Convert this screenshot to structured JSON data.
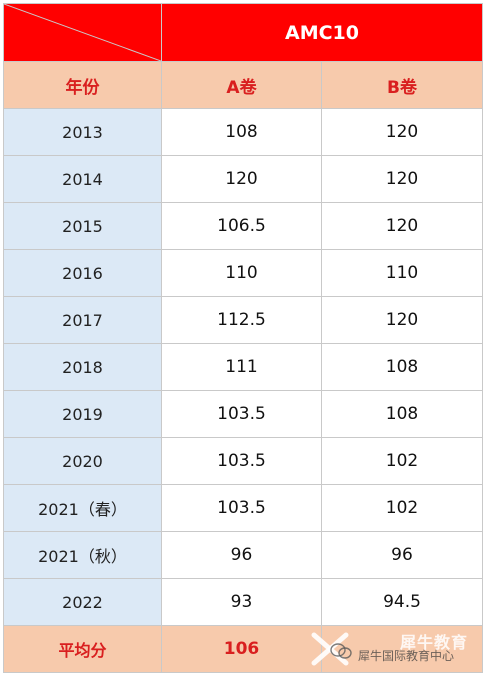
{
  "table": {
    "title": "AMC10",
    "headers": {
      "year": "年份",
      "a": "A卷",
      "b": "B卷"
    },
    "rows": [
      {
        "year": "2013",
        "a": "108",
        "b": "120"
      },
      {
        "year": "2014",
        "a": "120",
        "b": "120"
      },
      {
        "year": "2015",
        "a": "106.5",
        "b": "120"
      },
      {
        "year": "2016",
        "a": "110",
        "b": "110"
      },
      {
        "year": "2017",
        "a": "112.5",
        "b": "120"
      },
      {
        "year": "2018",
        "a": "111",
        "b": "108"
      },
      {
        "year": "2019",
        "a": "103.5",
        "b": "108"
      },
      {
        "year": "2020",
        "a": "103.5",
        "b": "102"
      },
      {
        "year": "2021（春）",
        "a": "103.5",
        "b": "102"
      },
      {
        "year": "2021（秋）",
        "a": "96",
        "b": "96"
      },
      {
        "year": "2022",
        "a": "93",
        "b": "94.5"
      }
    ],
    "average": {
      "label": "平均分",
      "a": "106",
      "b": ""
    }
  },
  "watermark": {
    "brand": "犀牛教育",
    "text": "犀牛国际教育中心",
    "icon": "wechat-logo-icon"
  },
  "colors": {
    "title_bg": "#ff0000",
    "header_bg": "#f7caac",
    "header_text": "#d91f1f",
    "year_bg": "#dce9f6",
    "border": "#c9c9c9"
  }
}
